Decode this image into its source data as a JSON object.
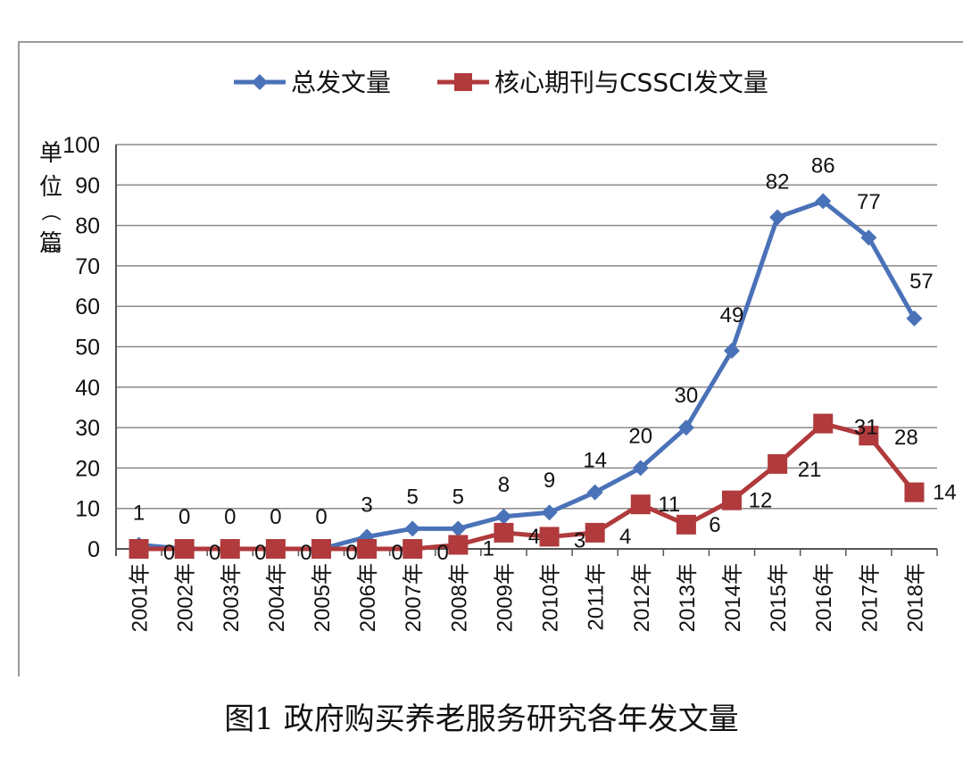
{
  "caption": "图1  政府购买养老服务研究各年发文量",
  "chart_data": {
    "type": "line",
    "title": "",
    "xlabel": "",
    "ylabel": "单位（篇）",
    "ylim": [
      0,
      100
    ],
    "yticks": [
      0,
      10,
      20,
      30,
      40,
      50,
      60,
      70,
      80,
      90,
      100
    ],
    "grid": true,
    "legend_position": "top",
    "categories": [
      "2001年",
      "2002年",
      "2003年",
      "2004年",
      "2005年",
      "2006年",
      "2007年",
      "2008年",
      "2009年",
      "2010年",
      "2011年",
      "2012年",
      "2013年",
      "2014年",
      "2015年",
      "2016年",
      "2017年",
      "2018年"
    ],
    "series": [
      {
        "name": "总发文量",
        "color": "#4a72b8",
        "marker": "diamond",
        "values": [
          1,
          0,
          0,
          0,
          0,
          3,
          5,
          5,
          8,
          9,
          14,
          20,
          30,
          49,
          82,
          86,
          77,
          57
        ]
      },
      {
        "name": "核心期刊与CSSCI发文量",
        "color": "#b03a3c",
        "marker": "square",
        "values": [
          0,
          0,
          0,
          0,
          0,
          0,
          0,
          1,
          4,
          3,
          4,
          11,
          6,
          12,
          21,
          31,
          28,
          14
        ]
      }
    ]
  }
}
